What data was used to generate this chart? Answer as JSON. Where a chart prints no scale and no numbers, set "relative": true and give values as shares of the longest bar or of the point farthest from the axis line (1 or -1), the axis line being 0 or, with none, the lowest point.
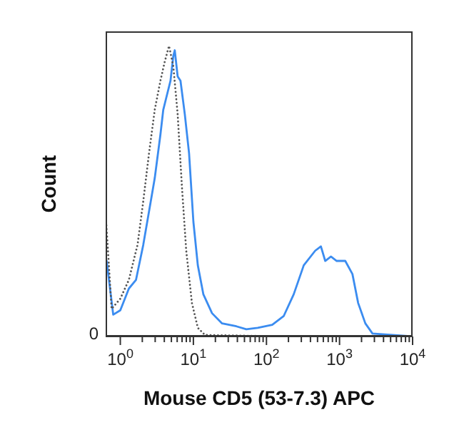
{
  "chart_data": {
    "type": "line",
    "relative": true,
    "xlabel": "Mouse CD5 (53-7.3) APC",
    "ylabel": "Count",
    "annotations": [
      "0"
    ],
    "log": "x",
    "xlim": [
      0.63,
      10000
    ],
    "xticks": [
      {
        "value": 1,
        "label": "10$^{0}$"
      },
      {
        "value": 2,
        "label": null
      },
      {
        "value": 3,
        "label": null
      },
      {
        "value": 4,
        "label": null
      },
      {
        "value": 5,
        "label": null
      },
      {
        "value": 6,
        "label": null
      },
      {
        "value": 7,
        "label": null
      },
      {
        "value": 8,
        "label": null
      },
      {
        "value": 9,
        "label": null
      },
      {
        "value": 10,
        "label": "10$^{1}$"
      },
      {
        "value": 20,
        "label": null
      },
      {
        "value": 30,
        "label": null
      },
      {
        "value": 40,
        "label": null
      },
      {
        "value": 50,
        "label": null
      },
      {
        "value": 60,
        "label": null
      },
      {
        "value": 70,
        "label": null
      },
      {
        "value": 80,
        "label": null
      },
      {
        "value": 90,
        "label": null
      },
      {
        "value": 100,
        "label": "10$^{2}$"
      },
      {
        "value": 200,
        "label": null
      },
      {
        "value": 300,
        "label": null
      },
      {
        "value": 400,
        "label": null
      },
      {
        "value": 500,
        "label": null
      },
      {
        "value": 600,
        "label": null
      },
      {
        "value": 700,
        "label": null
      },
      {
        "value": 800,
        "label": null
      },
      {
        "value": 900,
        "label": null
      },
      {
        "value": 1000,
        "label": "10$^{3}$"
      },
      {
        "value": 2000,
        "label": null
      },
      {
        "value": 3000,
        "label": null
      },
      {
        "value": 4000,
        "label": null
      },
      {
        "value": 5000,
        "label": null
      },
      {
        "value": 6000,
        "label": null
      },
      {
        "value": 7000,
        "label": null
      },
      {
        "value": 8000,
        "label": null
      },
      {
        "value": 9000,
        "label": null
      },
      {
        "value": 10000,
        "label": "10$^{4}$"
      }
    ],
    "series": [
      {
        "color": "#3b8cf0",
        "line_style": "solid",
        "x": [
          0.65,
          0.8,
          1.0,
          1.31,
          1.64,
          2.06,
          2.47,
          2.96,
          3.54,
          3.87,
          4.24,
          4.86,
          5.31,
          5.56,
          6.09,
          6.66,
          7.63,
          8.73,
          10,
          11.5,
          13.7,
          18,
          24.7,
          38.7,
          53,
          76,
          120,
          172,
          236,
          324,
          464,
          556,
          637,
          763,
          914,
          1198,
          1501,
          1799,
          2255,
          2825,
          10000
        ],
        "values": [
          0.26,
          0.075,
          0.09,
          0.165,
          0.195,
          0.315,
          0.43,
          0.545,
          0.695,
          0.78,
          0.82,
          0.88,
          0.965,
          0.985,
          0.895,
          0.88,
          0.765,
          0.63,
          0.395,
          0.245,
          0.145,
          0.08,
          0.045,
          0.035,
          0.025,
          0.03,
          0.04,
          0.07,
          0.145,
          0.245,
          0.295,
          0.31,
          0.26,
          0.275,
          0.26,
          0.26,
          0.215,
          0.115,
          0.045,
          0.01,
          0
        ]
      },
      {
        "color": "#555555",
        "line_style": "dotted",
        "x": [
          0.64,
          0.76,
          1.0,
          1.31,
          1.72,
          2.06,
          2.47,
          2.96,
          3.54,
          4.05,
          4.64,
          5.31,
          6.09,
          6.97,
          7.98,
          9.55,
          11.5,
          14.4,
          188,
          10000
        ],
        "values": [
          0.395,
          0.095,
          0.13,
          0.195,
          0.315,
          0.465,
          0.63,
          0.78,
          0.88,
          0.945,
          1.0,
          0.93,
          0.765,
          0.515,
          0.295,
          0.115,
          0.03,
          0.005,
          0,
          0
        ]
      }
    ]
  }
}
